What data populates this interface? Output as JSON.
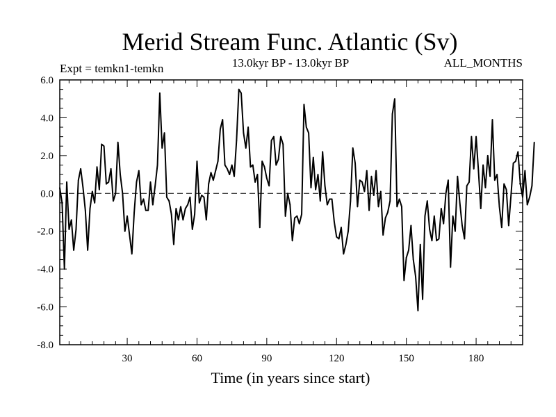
{
  "chart_data": {
    "type": "line",
    "title": "Merid Stream Func. Atlantic (Sv)",
    "expt_label": "Expt = temkn1-temkn",
    "period_label": "13.0kyr BP - 13.0kyr BP",
    "months_label": "ALL_MONTHS",
    "xlabel": "Time (in years since start)",
    "ylabel": "",
    "xlim": [
      1,
      200
    ],
    "ylim": [
      -8,
      6
    ],
    "x_ticks": [
      30,
      60,
      90,
      120,
      150,
      180
    ],
    "x_tick_labels": [
      "30",
      "60",
      "90",
      "120",
      "150",
      "180"
    ],
    "y_ticks": [
      -8,
      -6,
      -4,
      -2,
      0,
      2,
      4,
      6
    ],
    "y_tick_labels": [
      "-8.0",
      "-6.0",
      "-4.0",
      "-2.0",
      "0.0",
      "2.0",
      "4.0",
      "6.0"
    ],
    "zero_line": "dashed",
    "series": [
      {
        "name": "temkn1-temkn",
        "x_start": 1,
        "x_step": 1,
        "values": [
          0.3,
          -0.5,
          -4.0,
          0.6,
          -1.9,
          -1.4,
          -3.0,
          -1.9,
          0.7,
          1.3,
          0.3,
          -0.9,
          -3.0,
          -0.8,
          0.1,
          -0.5,
          1.4,
          0.2,
          2.6,
          2.5,
          0.5,
          0.6,
          1.3,
          -0.4,
          0.0,
          2.7,
          1.0,
          0.0,
          -2.0,
          -1.2,
          -2.2,
          -3.2,
          -1.0,
          0.6,
          1.2,
          -0.6,
          -0.3,
          -0.9,
          -0.9,
          0.6,
          -0.6,
          0.4,
          1.5,
          5.3,
          2.4,
          3.2,
          -0.2,
          -0.4,
          -1.1,
          -2.7,
          -0.8,
          -1.4,
          -0.7,
          -1.4,
          -0.8,
          -0.6,
          -0.2,
          -1.9,
          -1.1,
          1.7,
          -0.5,
          -0.1,
          -0.2,
          -1.4,
          0.5,
          1.1,
          0.7,
          1.2,
          1.7,
          3.4,
          3.9,
          1.5,
          1.3,
          1.0,
          1.5,
          0.9,
          2.8,
          5.5,
          5.3,
          3.2,
          2.4,
          3.5,
          1.4,
          1.5,
          0.6,
          1.0,
          -1.8,
          1.7,
          1.4,
          0.8,
          0.4,
          2.8,
          3.0,
          1.5,
          1.8,
          3.0,
          2.6,
          -1.2,
          0.0,
          -0.6,
          -2.5,
          -1.3,
          -1.2,
          -1.6,
          -1.1,
          4.7,
          3.5,
          3.2,
          0.3,
          1.9,
          0.2,
          1.0,
          -0.4,
          2.2,
          0.4,
          -0.6,
          -0.3,
          -0.3,
          -1.5,
          -2.3,
          -2.4,
          -1.8,
          -3.2,
          -2.7,
          -2.0,
          -0.4,
          2.4,
          1.6,
          -0.7,
          0.7,
          0.6,
          0.1,
          1.2,
          -0.9,
          0.9,
          -0.1,
          1.2,
          -0.7,
          0.1,
          -2.2,
          -1.3,
          -1.0,
          -0.4,
          4.2,
          5.0,
          -0.7,
          -0.3,
          -0.7,
          -4.6,
          -3.4,
          -3.0,
          -1.7,
          -3.5,
          -4.4,
          -6.2,
          -2.7,
          -5.6,
          -1.2,
          -0.4,
          -1.9,
          -2.5,
          -1.2,
          -2.5,
          -2.4,
          -0.8,
          -1.6,
          0.0,
          0.7,
          -3.9,
          -1.2,
          -2.0,
          0.9,
          -0.5,
          -1.7,
          -2.4,
          0.4,
          0.6,
          3.0,
          1.3,
          3.0,
          1.2,
          -0.8,
          1.5,
          0.3,
          2.0,
          0.9,
          3.9,
          0.7,
          1.0,
          -0.7,
          -1.8,
          0.5,
          0.2,
          -1.7,
          -0.1,
          1.6,
          1.7,
          2.2,
          0.5,
          -0.2,
          1.2,
          -0.6,
          -0.2,
          0.4,
          2.7
        ]
      }
    ],
    "grid": false,
    "legend": "none"
  }
}
